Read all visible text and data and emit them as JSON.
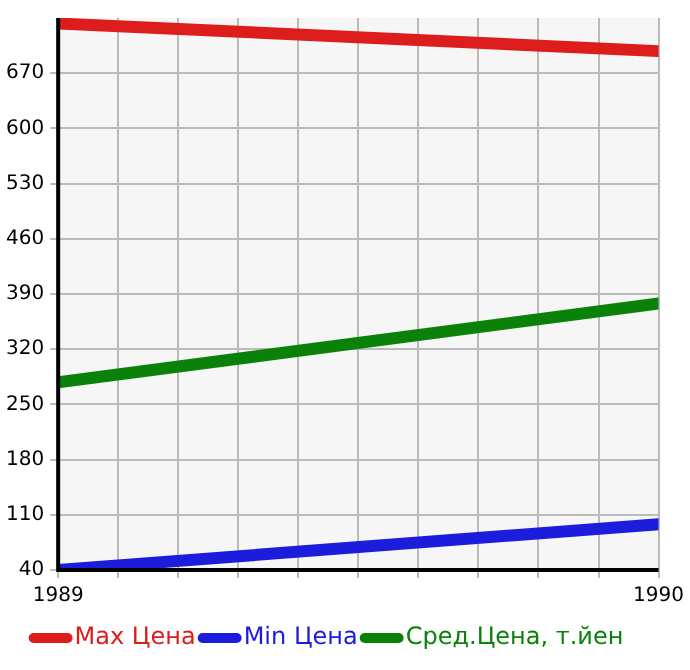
{
  "chart_data": {
    "type": "line",
    "x": [
      1989,
      1990
    ],
    "series": [
      {
        "name": "Max Цена",
        "color": "#dd1c1c",
        "values": [
          733,
          698
        ]
      },
      {
        "name": "Min Цена",
        "color": "#1c1cdd",
        "values": [
          40,
          98
        ]
      },
      {
        "name": "Сред.Цена, т.йен",
        "color": "#0a820a",
        "values": [
          278,
          378
        ]
      }
    ],
    "xlim": [
      1989,
      1990
    ],
    "xticks": [
      1989,
      {
        "value": 1989.1,
        "label": null
      },
      {
        "value": 1989.2,
        "label": null
      },
      {
        "value": 1989.3,
        "label": null
      },
      {
        "value": 1989.4,
        "label": null
      },
      {
        "value": 1989.5,
        "label": null
      },
      {
        "value": 1989.6,
        "label": null
      },
      {
        "value": 1989.7,
        "label": null
      },
      {
        "value": 1989.8,
        "label": null
      },
      {
        "value": 1989.9,
        "label": null
      },
      1990
    ],
    "ylim": [
      40,
      740
    ],
    "yticks": [
      40,
      110,
      180,
      250,
      320,
      390,
      460,
      530,
      600,
      670
    ],
    "grid": true,
    "legend": "bottom",
    "marker": "none",
    "line_style": "solid"
  }
}
